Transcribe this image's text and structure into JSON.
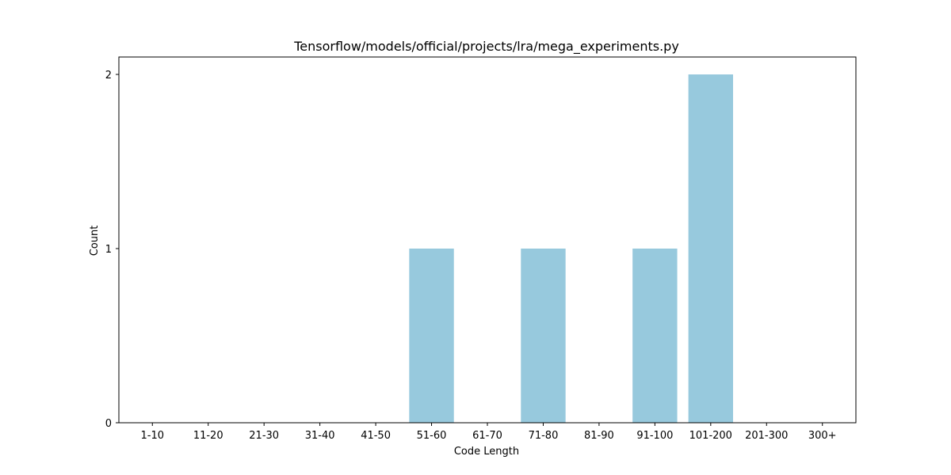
{
  "chart_data": {
    "type": "bar",
    "title": "Tensorflow/models/official/projects/lra/mega_experiments.py",
    "xlabel": "Code Length",
    "ylabel": "Count",
    "categories": [
      "1-10",
      "11-20",
      "21-30",
      "31-40",
      "41-50",
      "51-60",
      "61-70",
      "71-80",
      "81-90",
      "91-100",
      "101-200",
      "201-300",
      "300+"
    ],
    "values": [
      0,
      0,
      0,
      0,
      0,
      1,
      0,
      1,
      0,
      1,
      2,
      0,
      0
    ],
    "yticks": [
      0,
      1,
      2
    ],
    "ylim": [
      0,
      2.1
    ],
    "bar_color": "#97c9dd",
    "grid": false,
    "legend": "none"
  }
}
